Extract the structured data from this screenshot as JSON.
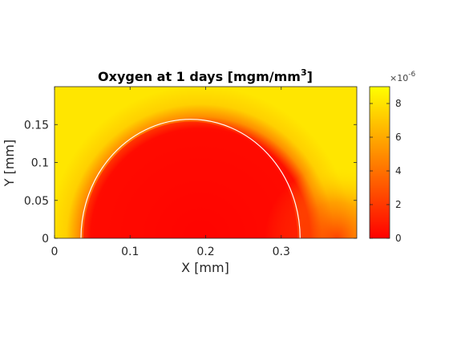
{
  "colors": {
    "low": "#ff0000",
    "mid": "#ff8000",
    "high": "#ffe600",
    "boundary": "#ffffff",
    "axis": "#262626"
  },
  "chart_data": {
    "type": "heatmap",
    "title_main": "Oxygen at 1 days [mgm/mm",
    "title_sup": "3",
    "title_end": "]",
    "xlabel": "X [mm]",
    "ylabel": "Y [mm]",
    "xlim": [
      0,
      0.4
    ],
    "ylim": [
      0,
      0.2
    ],
    "xticks": [
      0,
      0.1,
      0.2,
      0.3
    ],
    "xtick_labels": [
      "0",
      "0.1",
      "0.2",
      "0.3"
    ],
    "yticks": [
      0,
      0.05,
      0.1,
      0.15
    ],
    "ytick_labels": [
      "0",
      "0.05",
      "0.1",
      "0.15"
    ],
    "colorbar": {
      "range": [
        0,
        9e-06
      ],
      "ticks": [
        0,
        2e-06,
        4e-06,
        6e-06,
        8e-06
      ],
      "tick_labels": [
        "0",
        "2",
        "4",
        "6",
        "8"
      ],
      "exponent_base": "×10",
      "exponent_power": "-6",
      "colormap": "autumn"
    },
    "field": {
      "description_units": "mgm/mm^3",
      "ambient_value": 8.7e-06,
      "inner_value": 2e-07,
      "region_boundary": {
        "center_x": 0.18,
        "center_y": 0.0,
        "radius_x": 0.145,
        "radius_y": 0.157
      }
    },
    "grid": false,
    "legend": "colorbar-right"
  }
}
